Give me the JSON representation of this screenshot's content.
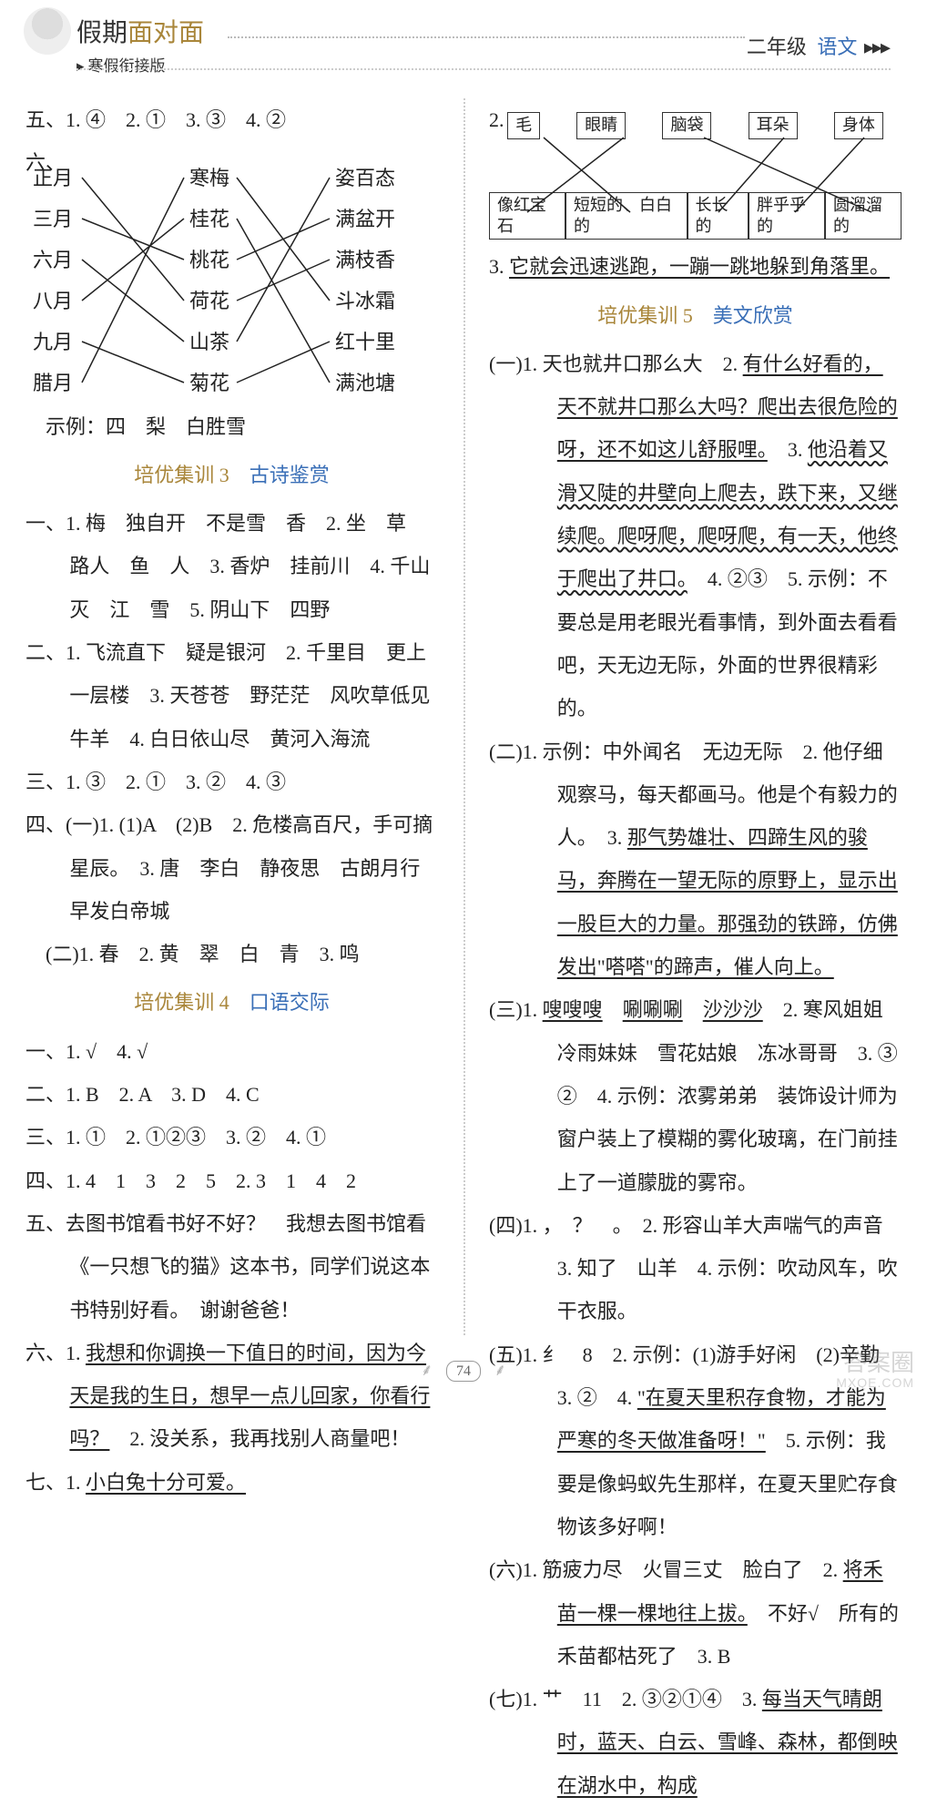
{
  "header": {
    "title_pre": "假期",
    "title_accent": "面对面",
    "subtitle": "寒假衔接版",
    "grade": "二年级",
    "subject": "语文",
    "arrows": "▸▸▸"
  },
  "left": {
    "l5": "五、1. ④　2. ①　3. ③　4. ②",
    "l6": "六、",
    "match": {
      "col1": [
        "正月",
        "三月",
        "六月",
        "八月",
        "九月",
        "腊月"
      ],
      "col2": [
        "寒梅",
        "桂花",
        "桃花",
        "荷花",
        "山茶",
        "菊花"
      ],
      "col3": [
        "姿百态",
        "满盆开",
        "满枝香",
        "斗冰霜",
        "红十里",
        "满池塘"
      ],
      "edges_a": [
        [
          0,
          3
        ],
        [
          1,
          2
        ],
        [
          2,
          4
        ],
        [
          3,
          1
        ],
        [
          4,
          5
        ],
        [
          5,
          0
        ]
      ],
      "edges_b": [
        [
          0,
          3
        ],
        [
          1,
          5
        ],
        [
          2,
          1
        ],
        [
          3,
          2
        ],
        [
          4,
          0
        ],
        [
          5,
          4
        ]
      ],
      "line_color": "#222"
    },
    "l_ex": "　示例：四　梨　白胜雪",
    "sec3": {
      "num": "培优集训 3",
      "name": "古诗鉴赏"
    },
    "y1": "一、1. 梅　独自开　不是雪　香　2. 坐　草　路人　鱼　人　3. 香炉　挂前川　4. 千山　灭　江　雪　5. 阴山下　四野",
    "y2": "二、1. 飞流直下　疑是银河　2. 千里目　更上一层楼　3. 天苍苍　野茫茫　风吹草低见牛羊　4. 白日依山尽　黄河入海流",
    "y3": "三、1. ③　2. ①　3. ②　4. ③",
    "y4": "四、(一)1. (1)A　(2)B　2. 危楼高百尺，手可摘星辰。　3. 唐　李白　静夜思　古朗月行　早发白帝城",
    "y4b": "　(二)1. 春　2. 黄　翠　白　青　3. 鸣",
    "sec4": {
      "num": "培优集训 4",
      "name": "口语交际"
    },
    "k1": "一、1. √　4. √",
    "k2": "二、1. B　2. A　3. D　4. C",
    "k3": "三、1. ①　2. ①②③　3. ②　4. ①",
    "k4": "四、1. 4　1　3　2　5　2. 3　1　4　2",
    "k5": "五、去图书馆看书好不好？　我想去图书馆看《一只想飞的猫》这本书，同学们说这本书特别好看。　谢谢爸爸！",
    "k6a": "六、1. ",
    "k6u": "我想和你调换一下值日的时间，因为今天是我的生日，想早一点儿回家，你看行吗？",
    "k6b": "　2. 没关系，我再找别人商量吧！",
    "k7a": "七、1. ",
    "k7u": "小白兔十分可爱。"
  },
  "right": {
    "box": {
      "top": [
        "毛",
        "眼睛",
        "脑袋",
        "耳朵",
        "身体"
      ],
      "bot": [
        "像红宝石",
        "短短的、白白的",
        "长长的",
        "胖乎乎的",
        "圆溜溜的"
      ],
      "edges": [
        [
          0,
          1
        ],
        [
          1,
          0
        ],
        [
          2,
          4
        ],
        [
          3,
          2
        ],
        [
          4,
          3
        ]
      ],
      "line_color": "#222"
    },
    "r3a": "3. ",
    "r3u": "它就会迅速逃跑，一蹦一跳地躲到角落里。",
    "sec5": {
      "num": "培优集训 5",
      "name": "美文欣赏"
    },
    "p1a": "(一)1. 天也就井口那么大　2. ",
    "p1u1": "有什么好看的，天不就井口那么大吗？爬出去很危险的呀，还不如这儿舒服哩。",
    "p1b": "　3. ",
    "p1u2": "他沿着又滑又陡的井壁向上爬去，跌下来，又继续爬。爬呀爬，爬呀爬，有一天，他终于爬出了井口。",
    "p1c": "　4. ②③　5. 示例：不要总是用老眼光看事情，到外面去看看吧，天无边无际，外面的世界很精彩的。",
    "p2a": "(二)1. 示例：中外闻名　无边无际　2. 他仔细观察马，每天都画马。他是个有毅力的人。　3. ",
    "p2u": "那气势雄壮、四蹄生风的骏马，奔腾在一望无际的原野上，显示出一股巨大的力量。那强劲的铁蹄，仿佛发出\"嗒嗒\"的蹄声，催人向上。",
    "p3a": "(三)1. ",
    "p3u1": "嗖嗖嗖",
    "p3m1": "　",
    "p3u2": "唰唰唰",
    "p3m2": "　",
    "p3u3": "沙沙沙",
    "p3b": "　2. 寒风姐姐　冷雨妹妹　雪花姑娘　冻冰哥哥　3. ③　②　4. 示例：浓雾弟弟　装饰设计师为窗户装上了模糊的雾化玻璃，在门前挂上了一道朦胧的雾帘。",
    "p4": "(四)1. ，　？　。　2. 形容山羊大声喘气的声音　3. 知了　山羊　4. 示例：吹动风车，吹干衣服。",
    "p5a": "(五)1. 纟　8　2. 示例：(1)游手好闲　(2)辛勤　3. ②　4. ",
    "p5u": "\"在夏天里积存食物，才能为严寒的冬天做准备呀！\"",
    "p5b": "　5. 示例：我要是像蚂蚁先生那样，在夏天里贮存食物该多好啊！",
    "p6a": "(六)1. 筋疲力尽　火冒三丈　脸白了　2. ",
    "p6u": "将禾苗一棵一棵地往上拔。",
    "p6b": "　不好√　所有的禾苗都枯死了　3. B",
    "p7a": "(七)1. 艹　11　2. ③②①④　3. ",
    "p7u": "每当天气晴朗时，蓝天、白云、雪峰、森林，都倒映在湖水中，构成"
  },
  "footer": {
    "page": "74"
  },
  "watermark": {
    "l1": "答案圈",
    "l2": "MXQE.COM"
  }
}
